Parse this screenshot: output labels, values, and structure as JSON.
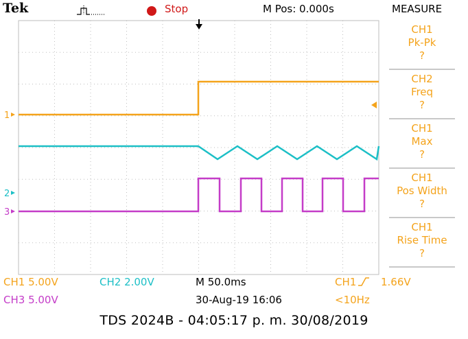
{
  "colors": {
    "ch1": "#f4a31b",
    "ch2": "#1cbfc6",
    "ch3": "#c43cc8",
    "menu": "#f4a31b",
    "grid": "#bdbdbd",
    "stop": "#d01818"
  },
  "header": {
    "brand": "Tek",
    "run_state": "Stop",
    "mpos": "M Pos: 0.000s",
    "menu_title": "MEASURE"
  },
  "icons": {
    "trigger_status": "pulse-icon",
    "run": "stop-dot-icon",
    "trigger_pos": "down-arrow-icon"
  },
  "measure_menu": [
    {
      "source": "CH1",
      "type": "Pk-Pk",
      "value": "?"
    },
    {
      "source": "CH2",
      "type": "Freq",
      "value": "?"
    },
    {
      "source": "CH1",
      "type": "Max",
      "value": "?"
    },
    {
      "source": "CH1",
      "type": "Pos Width",
      "value": "?"
    },
    {
      "source": "CH1",
      "type": "Rise Time",
      "value": "?"
    }
  ],
  "channels": {
    "ch1_marker": "1",
    "ch2_marker": "2",
    "ch3_marker": "3"
  },
  "status": {
    "ch1_scale": "CH1  5.00V",
    "ch2_scale": "CH2  2.00V",
    "ch3_scale": "CH3  5.00V",
    "timebase": "M 50.0ms",
    "trigger_source": "CH1",
    "trigger_level": "1.66V",
    "date_time": "30-Aug-19 16:06",
    "trigger_freq": "<10Hz"
  },
  "footer": "TDS 2024B - 04:05:17 p. m.   30/08/2019"
}
